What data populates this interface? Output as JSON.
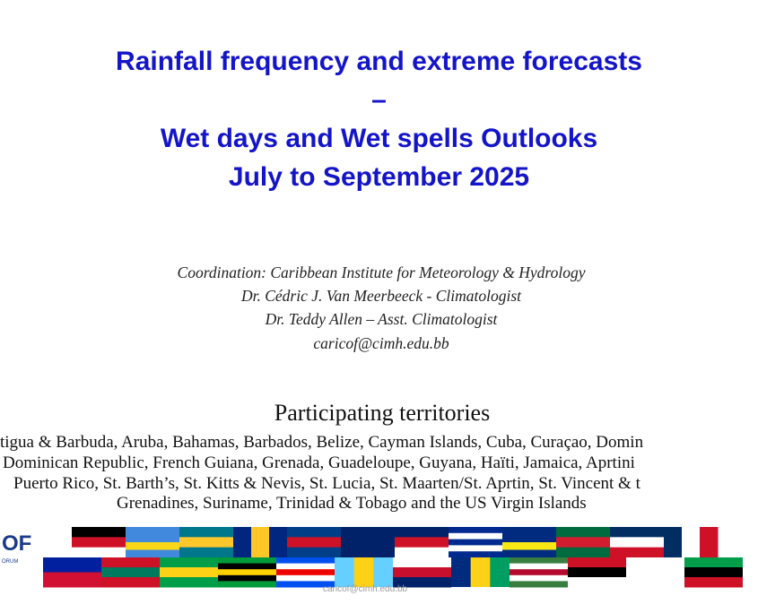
{
  "title": [
    "Rainfall frequency and extreme forecasts",
    "–",
    "Wet days and Wet spells Outlooks",
    "July to September 2025"
  ],
  "coordination": [
    "Coordination: Caribbean Institute for Meteorology & Hydrology",
    "Dr. Cédric J. Van Meerbeeck - Climatologist",
    "Dr. Teddy Allen – Asst. Climatologist",
    "caricof@cimh.edu.bb"
  ],
  "territories": {
    "heading": "Participating territories",
    "lines": [
      "tigua & Barbuda, Aruba, Bahamas, Barbados, Belize, Cayman Islands, Cuba, Curaçao, Domin",
      "Dominican Republic, French Guiana, Grenada, Guadeloupe, Guyana, Haïti, Jamaica, Aprtini",
      "Puerto Rico, St. Barth’s, St. Kitts & Nevis, St. Lucia, St. Maarten/St. Aprtin, St. Vincent & t",
      "Grenadines, Suriname, Trinidad & Tobago and the US Virgin Islands"
    ]
  },
  "logo": {
    "mark": "OF",
    "sub": "ORUM"
  },
  "footer": "caricof@cimh.edu.bb"
}
